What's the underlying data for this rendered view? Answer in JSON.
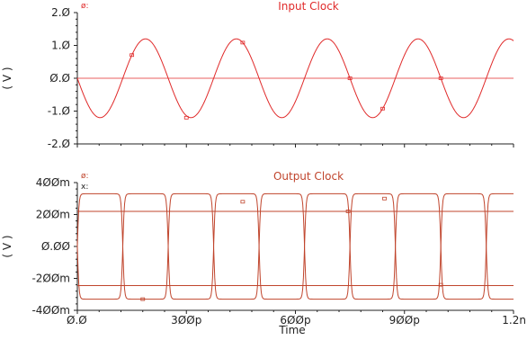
{
  "chart_data": [
    {
      "type": "line",
      "title": "Input Clock",
      "ylabel": "( V )",
      "xlim": [
        0,
        1.2
      ],
      "ylim": [
        -2.0,
        2.0
      ],
      "x_tick_labels": [],
      "y_ticks": [
        2.0,
        1.0,
        0.0,
        -1.0,
        -2.0
      ],
      "y_tick_labels": [
        "2.Ø",
        "1.Ø",
        "Ø.Ø",
        "-1.Ø",
        "-2.Ø"
      ],
      "corner_label": "ø:",
      "grid": false,
      "color": "#e02a2a",
      "series": [
        {
          "kind": "sine",
          "amplitude": 1.2,
          "period_ns": 0.25,
          "phase_deg": 180,
          "offset": 0.0
        }
      ]
    },
    {
      "type": "line",
      "title": "Output Clock",
      "ylabel": "( V )",
      "xlabel": "Time",
      "xlim": [
        0,
        1.2
      ],
      "ylim": [
        -0.4,
        0.4
      ],
      "x_ticks": [
        0,
        0.3,
        0.6,
        0.9,
        1.2
      ],
      "x_tick_labels": [
        "Ø.Ø",
        "3ØØp",
        "6ØØp",
        "9ØØp",
        "1.2n"
      ],
      "y_ticks": [
        0.4,
        0.2,
        0.0,
        -0.2,
        -0.4
      ],
      "y_tick_labels": [
        "4ØØm",
        "2ØØm",
        "Ø.ØØ",
        "-2ØØm",
        "-4ØØm"
      ],
      "corner_label": [
        "ø:",
        "x:"
      ],
      "grid": false,
      "color": "#c0452d",
      "series": [
        {
          "kind": "square",
          "high": 0.33,
          "low": -0.33,
          "period_ns": 0.25
        },
        {
          "kind": "square-inverted",
          "high": 0.33,
          "low": -0.33,
          "period_ns": 0.25
        },
        {
          "kind": "level",
          "value": 0.22
        },
        {
          "kind": "level",
          "value": -0.245
        }
      ]
    }
  ]
}
